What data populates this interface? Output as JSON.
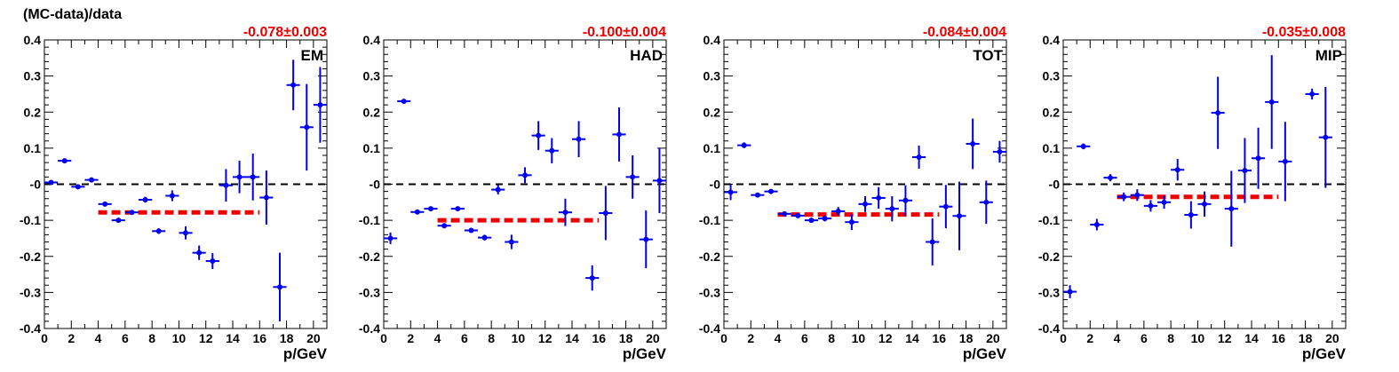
{
  "figure": {
    "ylabel": "(MC-data)/data",
    "xlabel": "p/GeV",
    "colors": {
      "points": "#0000ee",
      "fit": "#ee0000",
      "zero_line": "#000000",
      "fit_text": "#ee0000"
    }
  },
  "chart_data": [
    {
      "type": "scatter",
      "panel_label": "EM",
      "fit_text": "-0.078±0.003",
      "fit": {
        "value": -0.078,
        "x_range": [
          4,
          16
        ]
      },
      "xlim": [
        0,
        21
      ],
      "ylim": [
        -0.4,
        0.4
      ],
      "xticks": [
        "0",
        "2",
        "4",
        "6",
        "8",
        "10",
        "12",
        "14",
        "16",
        "18",
        "20"
      ],
      "yticks": [
        "-0.4",
        "-0.3",
        "-0.2",
        "-0.1",
        "-0",
        "0.1",
        "0.2",
        "0.3",
        "0.4"
      ],
      "points": [
        {
          "x": 0.5,
          "y": 0.005,
          "err": 0.006
        },
        {
          "x": 1.5,
          "y": 0.065,
          "err": 0.004
        },
        {
          "x": 2.5,
          "y": -0.007,
          "err": 0.004
        },
        {
          "x": 3.5,
          "y": 0.012,
          "err": 0.006
        },
        {
          "x": 4.5,
          "y": -0.055,
          "err": 0.004
        },
        {
          "x": 5.5,
          "y": -0.1,
          "err": 0.004
        },
        {
          "x": 6.5,
          "y": -0.078,
          "err": 0.004
        },
        {
          "x": 7.5,
          "y": -0.043,
          "err": 0.008
        },
        {
          "x": 8.5,
          "y": -0.13,
          "err": 0.008
        },
        {
          "x": 9.5,
          "y": -0.032,
          "err": 0.015
        },
        {
          "x": 10.5,
          "y": -0.135,
          "err": 0.018
        },
        {
          "x": 11.5,
          "y": -0.19,
          "err": 0.02
        },
        {
          "x": 12.5,
          "y": -0.213,
          "err": 0.022
        },
        {
          "x": 13.5,
          "y": -0.003,
          "err": 0.045
        },
        {
          "x": 14.5,
          "y": 0.02,
          "err": 0.045
        },
        {
          "x": 15.5,
          "y": 0.02,
          "err": 0.065
        },
        {
          "x": 16.5,
          "y": -0.037,
          "err": 0.075
        },
        {
          "x": 17.5,
          "y": -0.285,
          "err": 0.095
        },
        {
          "x": 18.5,
          "y": 0.275,
          "err": 0.07
        },
        {
          "x": 19.5,
          "y": 0.158,
          "err": 0.12
        },
        {
          "x": 20.5,
          "y": 0.22,
          "err": 0.105
        }
      ]
    },
    {
      "type": "scatter",
      "panel_label": "HAD",
      "fit_text": "-0.100±0.004",
      "fit": {
        "value": -0.1,
        "x_range": [
          4,
          16
        ]
      },
      "xlim": [
        0,
        21
      ],
      "ylim": [
        -0.4,
        0.4
      ],
      "xticks": [
        "0",
        "2",
        "4",
        "6",
        "8",
        "10",
        "12",
        "14",
        "16",
        "18",
        "20"
      ],
      "yticks": [
        "-0.4",
        "-0.3",
        "-0.2",
        "-0.1",
        "-0",
        "0.1",
        "0.2",
        "0.3",
        "0.4"
      ],
      "points": [
        {
          "x": 0.5,
          "y": -0.15,
          "err": 0.016
        },
        {
          "x": 1.5,
          "y": 0.23,
          "err": 0.006
        },
        {
          "x": 2.5,
          "y": -0.077,
          "err": 0.005
        },
        {
          "x": 3.5,
          "y": -0.068,
          "err": 0.005
        },
        {
          "x": 4.5,
          "y": -0.115,
          "err": 0.006
        },
        {
          "x": 5.5,
          "y": -0.068,
          "err": 0.005
        },
        {
          "x": 6.5,
          "y": -0.128,
          "err": 0.006
        },
        {
          "x": 7.5,
          "y": -0.148,
          "err": 0.008
        },
        {
          "x": 8.5,
          "y": -0.015,
          "err": 0.013
        },
        {
          "x": 9.5,
          "y": -0.16,
          "err": 0.02
        },
        {
          "x": 10.5,
          "y": 0.025,
          "err": 0.022
        },
        {
          "x": 11.5,
          "y": 0.135,
          "err": 0.04
        },
        {
          "x": 12.5,
          "y": 0.093,
          "err": 0.035
        },
        {
          "x": 13.5,
          "y": -0.078,
          "err": 0.038
        },
        {
          "x": 14.5,
          "y": 0.125,
          "err": 0.05
        },
        {
          "x": 15.5,
          "y": -0.26,
          "err": 0.035
        },
        {
          "x": 16.5,
          "y": -0.08,
          "err": 0.075
        },
        {
          "x": 17.5,
          "y": 0.138,
          "err": 0.075
        },
        {
          "x": 18.5,
          "y": 0.02,
          "err": 0.06
        },
        {
          "x": 19.5,
          "y": -0.153,
          "err": 0.08
        },
        {
          "x": 20.5,
          "y": 0.01,
          "err": 0.09
        }
      ]
    },
    {
      "type": "scatter",
      "panel_label": "TOT",
      "fit_text": "-0.084±0.004",
      "fit": {
        "value": -0.084,
        "x_range": [
          4,
          16
        ]
      },
      "xlim": [
        0,
        21
      ],
      "ylim": [
        -0.4,
        0.4
      ],
      "xticks": [
        "0",
        "2",
        "4",
        "6",
        "8",
        "10",
        "12",
        "14",
        "16",
        "18",
        "20"
      ],
      "yticks": [
        "-0.4",
        "-0.3",
        "-0.2",
        "-0.1",
        "-0",
        "0.1",
        "0.2",
        "0.3",
        "0.4"
      ],
      "points": [
        {
          "x": 0.5,
          "y": -0.022,
          "err": 0.022
        },
        {
          "x": 1.5,
          "y": 0.108,
          "err": 0.008
        },
        {
          "x": 2.5,
          "y": -0.03,
          "err": 0.006
        },
        {
          "x": 3.5,
          "y": -0.02,
          "err": 0.005
        },
        {
          "x": 4.5,
          "y": -0.082,
          "err": 0.005
        },
        {
          "x": 5.5,
          "y": -0.087,
          "err": 0.005
        },
        {
          "x": 6.5,
          "y": -0.1,
          "err": 0.006
        },
        {
          "x": 7.5,
          "y": -0.095,
          "err": 0.008
        },
        {
          "x": 8.5,
          "y": -0.075,
          "err": 0.012
        },
        {
          "x": 9.5,
          "y": -0.105,
          "err": 0.022
        },
        {
          "x": 10.5,
          "y": -0.055,
          "err": 0.022
        },
        {
          "x": 11.5,
          "y": -0.038,
          "err": 0.03
        },
        {
          "x": 12.5,
          "y": -0.068,
          "err": 0.035
        },
        {
          "x": 13.5,
          "y": -0.045,
          "err": 0.042
        },
        {
          "x": 14.5,
          "y": 0.075,
          "err": 0.032
        },
        {
          "x": 15.5,
          "y": -0.16,
          "err": 0.065
        },
        {
          "x": 16.5,
          "y": -0.062,
          "err": 0.06
        },
        {
          "x": 17.5,
          "y": -0.088,
          "err": 0.095
        },
        {
          "x": 18.5,
          "y": 0.112,
          "err": 0.07
        },
        {
          "x": 19.5,
          "y": -0.05,
          "err": 0.06
        },
        {
          "x": 20.5,
          "y": 0.09,
          "err": 0.03
        }
      ]
    },
    {
      "type": "scatter",
      "panel_label": "MIP",
      "fit_text": "-0.035±0.008",
      "fit": {
        "value": -0.035,
        "x_range": [
          4,
          16
        ]
      },
      "xlim": [
        0,
        21
      ],
      "ylim": [
        -0.4,
        0.4
      ],
      "xticks": [
        "0",
        "2",
        "4",
        "6",
        "8",
        "10",
        "12",
        "14",
        "16",
        "18",
        "20"
      ],
      "yticks": [
        "-0.4",
        "-0.3",
        "-0.2",
        "-0.1",
        "-0",
        "0.1",
        "0.2",
        "0.3",
        "0.4"
      ],
      "points": [
        {
          "x": 0.5,
          "y": -0.298,
          "err": 0.018
        },
        {
          "x": 1.5,
          "y": 0.105,
          "err": 0.008
        },
        {
          "x": 2.5,
          "y": -0.112,
          "err": 0.016
        },
        {
          "x": 3.5,
          "y": 0.018,
          "err": 0.01
        },
        {
          "x": 4.5,
          "y": -0.035,
          "err": 0.012
        },
        {
          "x": 5.5,
          "y": -0.03,
          "err": 0.016
        },
        {
          "x": 6.5,
          "y": -0.06,
          "err": 0.016
        },
        {
          "x": 7.5,
          "y": -0.05,
          "err": 0.018
        },
        {
          "x": 8.5,
          "y": 0.04,
          "err": 0.03
        },
        {
          "x": 9.5,
          "y": -0.085,
          "err": 0.038
        },
        {
          "x": 10.5,
          "y": -0.055,
          "err": 0.035
        },
        {
          "x": 11.5,
          "y": 0.198,
          "err": 0.1
        },
        {
          "x": 12.5,
          "y": -0.068,
          "err": 0.105
        },
        {
          "x": 13.5,
          "y": 0.038,
          "err": 0.09
        },
        {
          "x": 14.5,
          "y": 0.072,
          "err": 0.085
        },
        {
          "x": 15.5,
          "y": 0.228,
          "err": 0.13
        },
        {
          "x": 16.5,
          "y": 0.063,
          "err": 0.11
        },
        {
          "x": 18.5,
          "y": 0.25,
          "err": 0.015
        },
        {
          "x": 19.5,
          "y": 0.13,
          "err": 0.14
        }
      ]
    }
  ]
}
